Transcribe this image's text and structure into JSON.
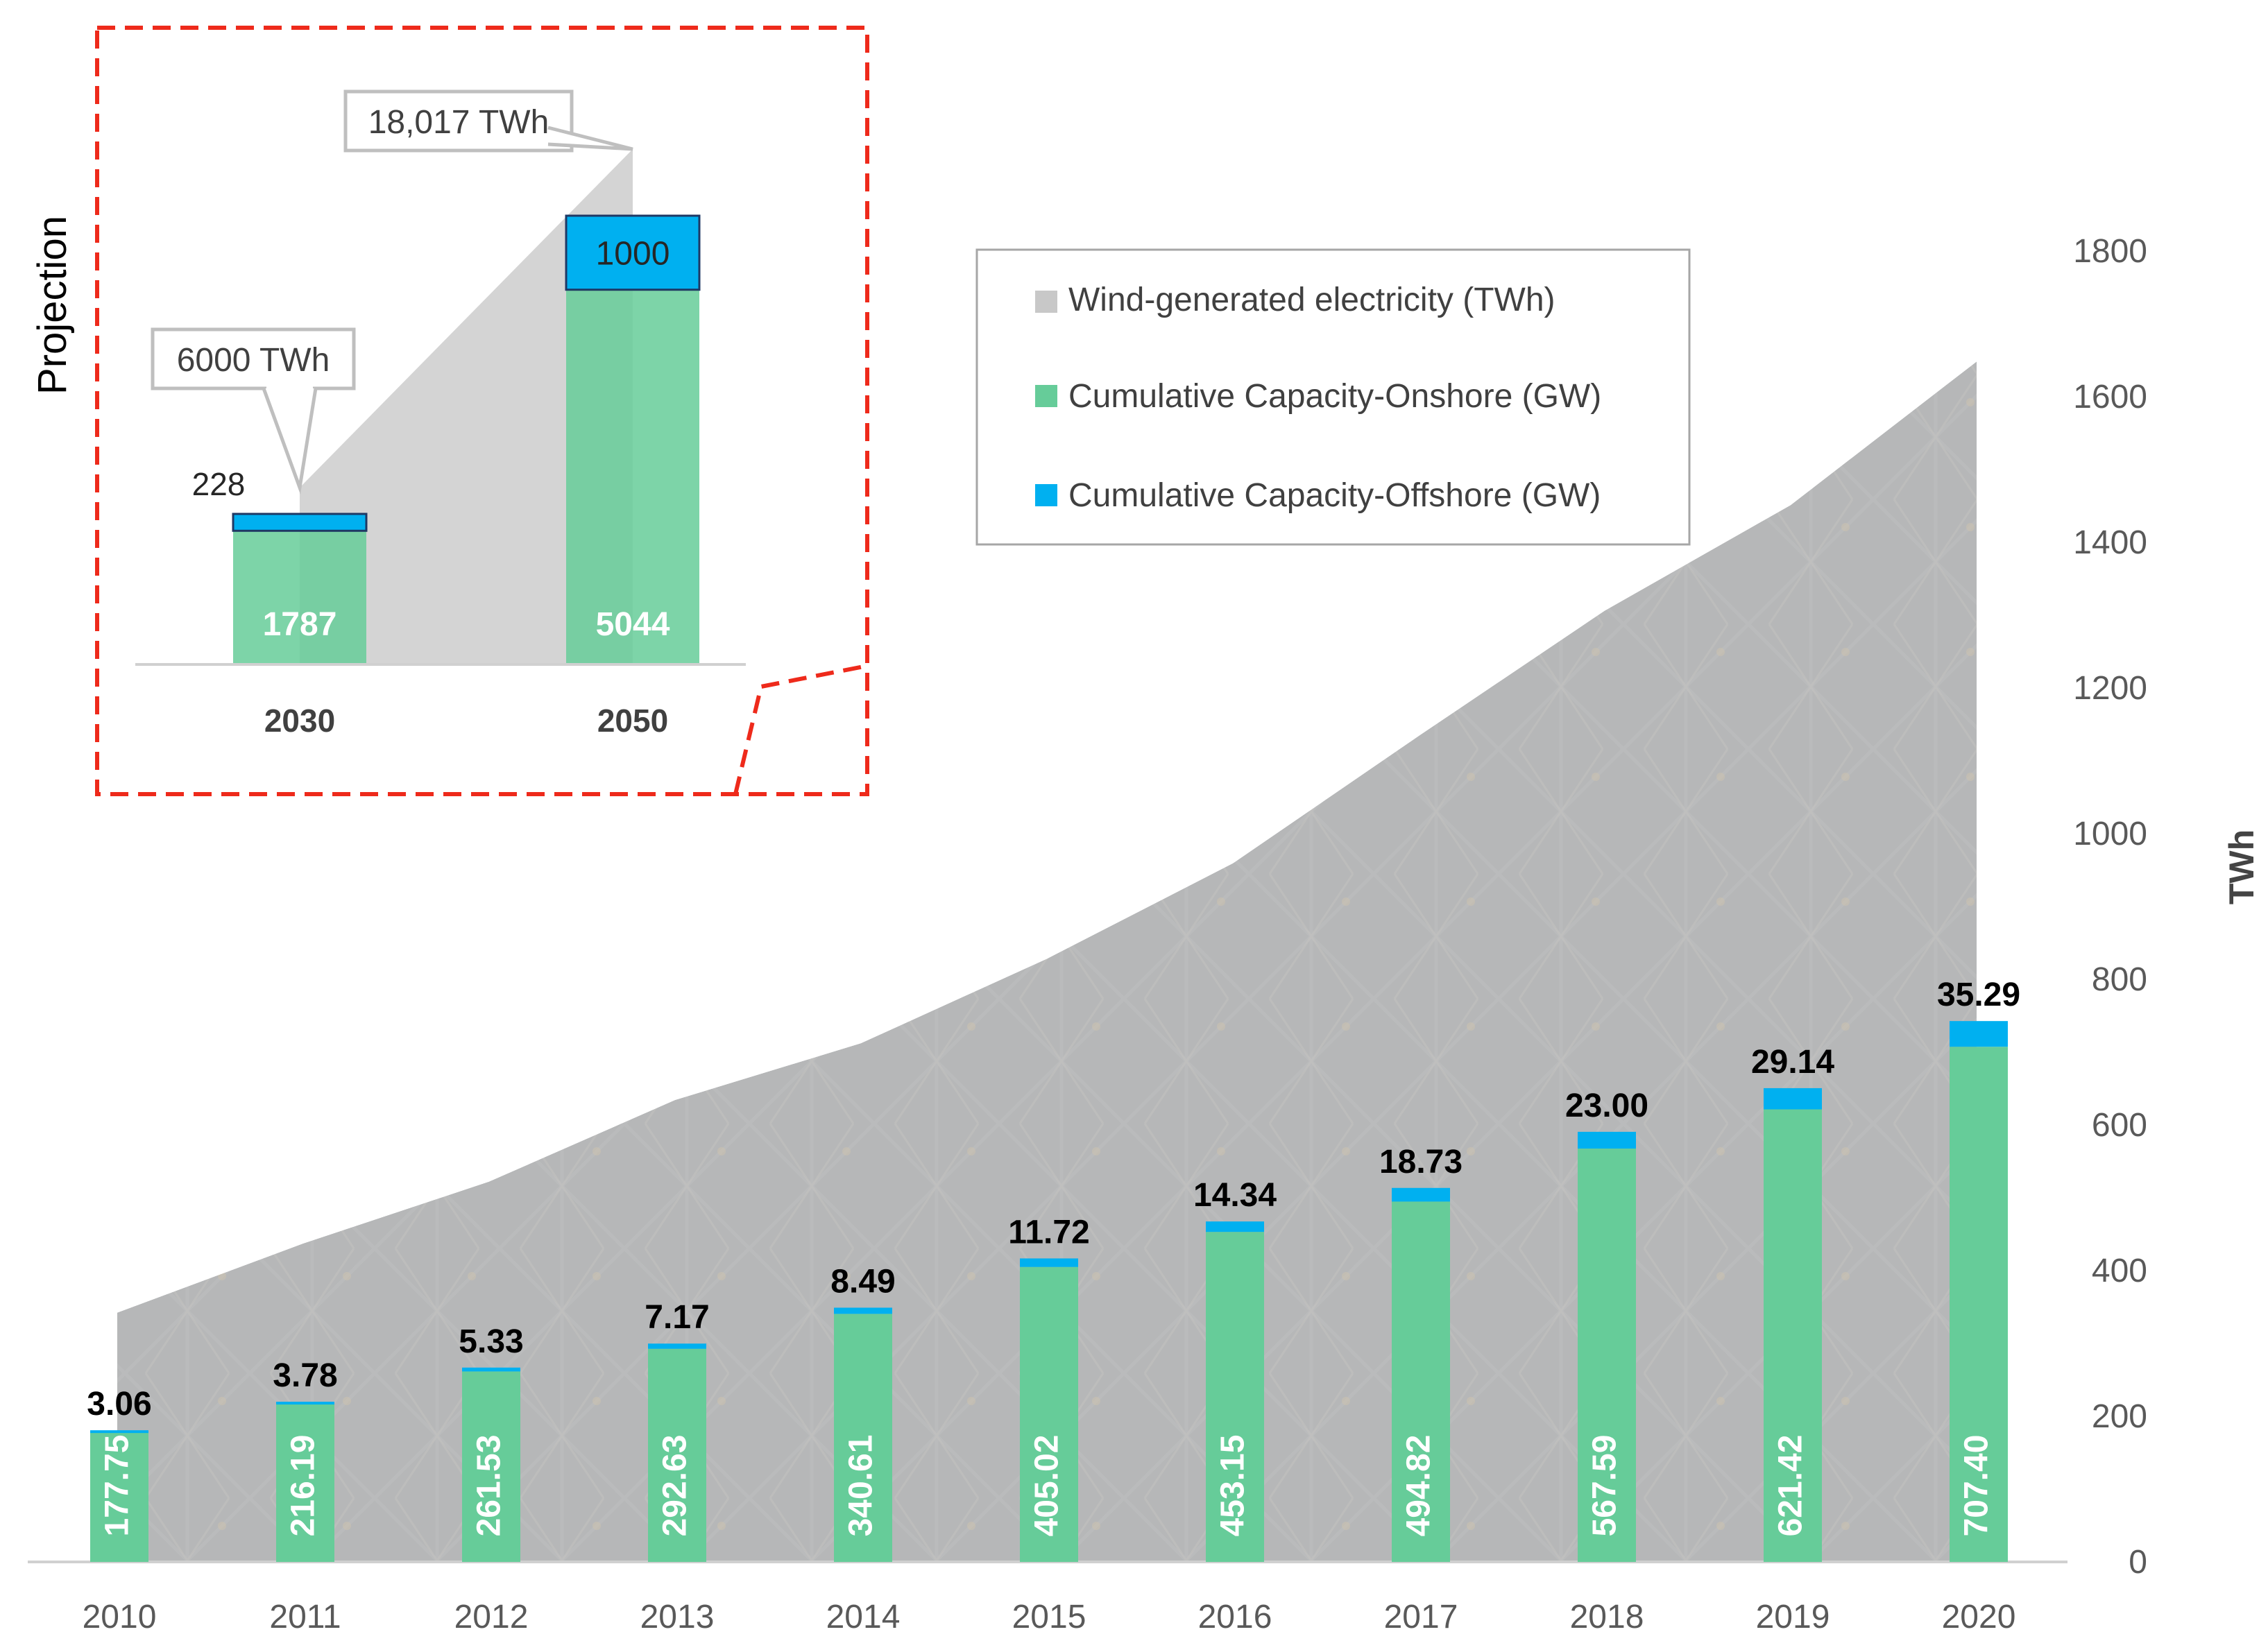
{
  "chart_data": [
    {
      "type": "bar",
      "subtype": "stacked-bar-with-area",
      "categories": [
        "2010",
        "2011",
        "2012",
        "2013",
        "2014",
        "2015",
        "2016",
        "2017",
        "2018",
        "2019",
        "2020"
      ],
      "series": [
        {
          "name": "Wind-generated electricity (TWh)",
          "kind": "area",
          "color": "#c8c8c8",
          "values": [
            342,
            437,
            522,
            634,
            712,
            828,
            959,
            1134,
            1306,
            1451,
            1648
          ]
        },
        {
          "name": "Cumulative Capacity-Onshore (GW)",
          "kind": "bar",
          "color": "#66cc99",
          "values": [
            177.75,
            216.19,
            261.53,
            292.63,
            340.61,
            405.02,
            453.15,
            494.82,
            567.59,
            621.42,
            707.4
          ],
          "labels": [
            "177.75",
            "216.19",
            "261.53",
            "292.63",
            "340.61",
            "405.02",
            "453.15",
            "494.82",
            "567.59",
            "621.42",
            "707.40"
          ]
        },
        {
          "name": "Cumulative Capacity-Offshore (GW)",
          "kind": "bar",
          "color": "#00b0f0",
          "values": [
            3.06,
            3.78,
            5.33,
            7.17,
            8.49,
            11.72,
            14.34,
            18.73,
            23.0,
            29.14,
            35.29
          ],
          "labels": [
            "3.06",
            "3.78",
            "5.33",
            "7.17",
            "8.49",
            "11.72",
            "14.34",
            "18.73",
            "23.00",
            "29.14",
            "35.29"
          ]
        }
      ],
      "ylabel": "TWh",
      "ylim": [
        0,
        1800
      ],
      "yticks": [
        "0",
        "200",
        "400",
        "600",
        "800",
        "1000",
        "1200",
        "1400",
        "1600",
        "1800"
      ],
      "yaxis_position": "right",
      "grid": false,
      "legend_position": "top-center",
      "legend": [
        {
          "label": "Wind-generated electricity (TWh)",
          "color": "#c8c8c8"
        },
        {
          "label": "Cumulative Capacity-Onshore (GW)",
          "color": "#66cc99"
        },
        {
          "label": "Cumulative Capacity-Offshore (GW)",
          "color": "#00b0f0"
        }
      ]
    },
    {
      "type": "bar",
      "title": "Projection",
      "categories": [
        "2030",
        "2050"
      ],
      "series": [
        {
          "name": "Cumulative Capacity-Onshore (GW)",
          "color": "#66cc99",
          "values": [
            1787,
            5044
          ],
          "labels": [
            "1787",
            "5044"
          ]
        },
        {
          "name": "Cumulative Capacity-Offshore (GW)",
          "color": "#00b0f0",
          "values": [
            228,
            1000
          ],
          "labels": [
            "228",
            "1000"
          ]
        }
      ],
      "callouts": [
        "6000 TWh",
        "18,017 TWh"
      ],
      "border_color": "#ee2a1b",
      "placement": "top-left inset"
    }
  ]
}
